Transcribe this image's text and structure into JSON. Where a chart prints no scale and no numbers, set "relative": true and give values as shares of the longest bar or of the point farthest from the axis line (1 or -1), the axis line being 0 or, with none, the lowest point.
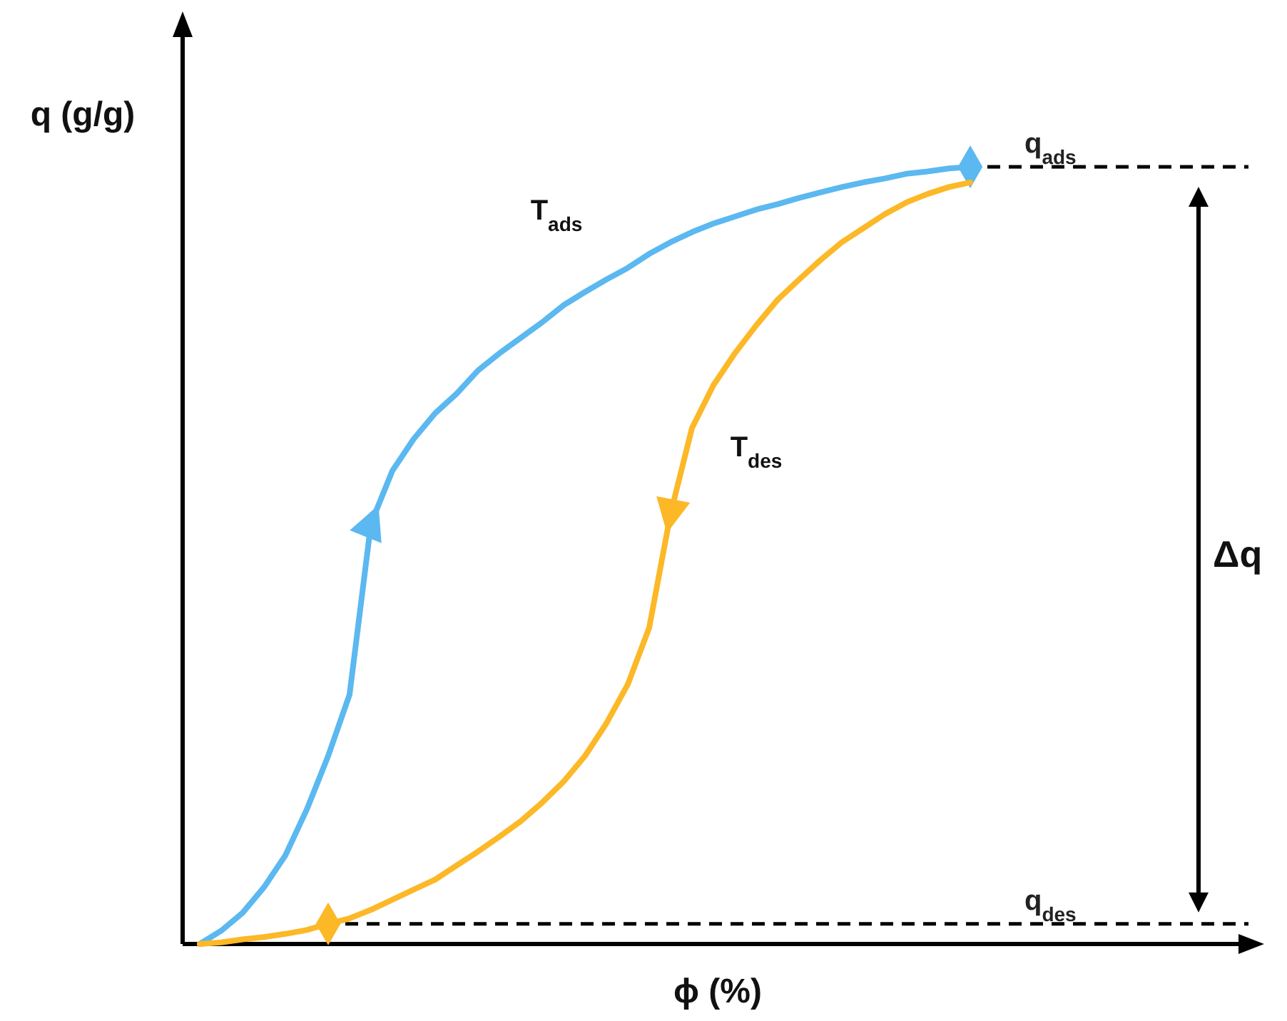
{
  "chart_data": {
    "type": "line",
    "relative": true,
    "xlabel": "ϕ (%)",
    "ylabel": "q (g/g)",
    "categories": [
      null,
      null,
      null,
      null,
      null,
      null,
      null,
      null,
      null,
      null,
      null,
      null,
      null,
      null,
      null,
      null,
      null,
      null,
      null,
      null,
      null,
      null,
      null,
      null,
      null,
      null,
      null,
      null,
      null,
      null,
      null,
      null,
      null,
      null,
      null,
      null,
      null
    ],
    "series": [
      {
        "color": "#5bb8f0",
        "values": [
          0,
          0.017,
          0.04,
          0.073,
          0.114,
          0.173,
          0.242,
          0.321,
          0.541,
          0.609,
          0.65,
          0.683,
          0.708,
          0.738,
          0.76,
          0.78,
          0.8,
          0.822,
          0.839,
          0.855,
          0.87,
          0.888,
          0.903,
          0.916,
          0.927,
          0.936,
          0.945,
          0.952,
          0.96,
          0.967,
          0.974,
          0.98,
          0.985,
          0.991,
          0.994,
          0.998,
          1.0
        ]
      },
      {
        "color": "#fcb827",
        "values": [
          0,
          0.002,
          0.006,
          0.009,
          0.013,
          0.018,
          0.026,
          0.033,
          0.044,
          0.057,
          0.07,
          0.083,
          0.101,
          0.119,
          0.138,
          0.158,
          0.182,
          0.209,
          0.242,
          0.284,
          0.334,
          0.407,
          0.554,
          0.664,
          0.719,
          0.76,
          0.796,
          0.829,
          0.855,
          0.88,
          0.903,
          0.921,
          0.939,
          0.954,
          0.965,
          0.974,
          0.98
        ]
      }
    ],
    "ref_lines": [
      {
        "axis": "y",
        "value": 1.0,
        "label": "q$_{ads}$",
        "line_style": "dashed",
        "color": "#000000"
      },
      {
        "axis": "y",
        "value": 0.026,
        "label": "q$_{des}$",
        "line_style": "dashed",
        "color": "#000000"
      }
    ],
    "annotations": [
      "T$_{ads}$",
      "T$_{des}$",
      "Δq"
    ]
  }
}
